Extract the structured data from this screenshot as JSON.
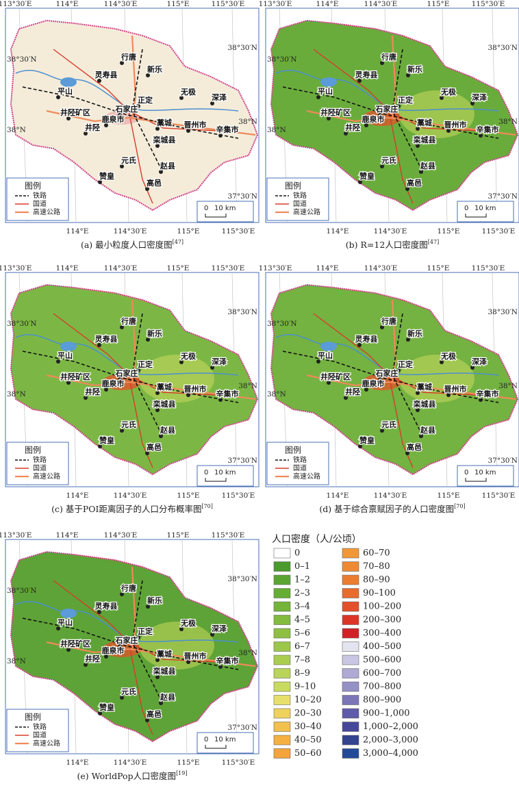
{
  "maps": [
    {
      "caption": "(a) 最小粒度人口密度图",
      "ref": "[47]",
      "fill": "#f4ecd9"
    },
    {
      "caption": "(b) R=12人口密度图",
      "ref": "[47]",
      "fill": "#6aac3c"
    },
    {
      "caption": "(c) 基于POI距离因子的人口分布概率图",
      "ref": "[70]",
      "fill": "#7cb745"
    },
    {
      "caption": "(d) 基于综合禀赋因子的人口密度图",
      "ref": "[70]",
      "fill": "#74b241"
    },
    {
      "caption": "(e) WorldPop人口密度图",
      "ref": "[19]",
      "fill": "#5ea337"
    }
  ],
  "graticule": {
    "top": [
      "113°30′E",
      "114°E",
      "114°30′E",
      "115°E",
      "115°30′E"
    ],
    "bottom": [
      "114°E",
      "114°30′E",
      "115°E",
      "115°30′E"
    ],
    "left": [
      "38°30′N",
      "38°N"
    ],
    "right": [
      "38°30′N",
      "38°N",
      "37°30′N"
    ]
  },
  "places": [
    "行唐",
    "灵寿县",
    "新乐",
    "平山",
    "正定",
    "石家庄",
    "无极",
    "深泽",
    "井陉矿区",
    "鹿泉市",
    "井陉",
    "藁城",
    "晋州市",
    "辛集市",
    "栾城县",
    "元氏",
    "赵县",
    "赞皇",
    "高邑"
  ],
  "map_legend": {
    "title": "图例",
    "items": [
      "铁路",
      "国道",
      "高速公路"
    ]
  },
  "scale_bar": {
    "zero": "0",
    "length": "10 km"
  },
  "density_legend": {
    "title": "人口密度（人/公顷）",
    "items": [
      {
        "label": "0",
        "color": "#ffffff"
      },
      {
        "label": "0–1",
        "color": "#4a9a2c"
      },
      {
        "label": "1–2",
        "color": "#5aa532"
      },
      {
        "label": "2–3",
        "color": "#66ad34"
      },
      {
        "label": "3–4",
        "color": "#74b43a"
      },
      {
        "label": "4–5",
        "color": "#82bb3e"
      },
      {
        "label": "5–6",
        "color": "#8fc043"
      },
      {
        "label": "6–7",
        "color": "#9cc74a"
      },
      {
        "label": "7–8",
        "color": "#aacd50"
      },
      {
        "label": "8–9",
        "color": "#bad459"
      },
      {
        "label": "9–10",
        "color": "#c9db5e"
      },
      {
        "label": "10–20",
        "color": "#e6e06a"
      },
      {
        "label": "20–30",
        "color": "#efd25c"
      },
      {
        "label": "30–40",
        "color": "#f2c04c"
      },
      {
        "label": "40–50",
        "color": "#f5b040"
      },
      {
        "label": "50–60",
        "color": "#f4a43a"
      },
      {
        "label": "60–70",
        "color": "#f29737"
      },
      {
        "label": "70–80",
        "color": "#ef8a34"
      },
      {
        "label": "80–90",
        "color": "#ec7c30"
      },
      {
        "label": "90–100",
        "color": "#e96c2d"
      },
      {
        "label": "100–200",
        "color": "#e4502a"
      },
      {
        "label": "200–300",
        "color": "#dc3528"
      },
      {
        "label": "300–400",
        "color": "#d22027"
      },
      {
        "label": "400–500",
        "color": "#e4e3f0"
      },
      {
        "label": "500–600",
        "color": "#c8c6e2"
      },
      {
        "label": "600–700",
        "color": "#aeaad4"
      },
      {
        "label": "700–800",
        "color": "#9590c6"
      },
      {
        "label": "800–900",
        "color": "#7b76b8"
      },
      {
        "label": "900–1,000",
        "color": "#5f5aa9"
      },
      {
        "label": "1,000–2,000",
        "color": "#46479b"
      },
      {
        "label": "2,000–3,000",
        "color": "#34438f"
      },
      {
        "label": "3,000–4,000",
        "color": "#234a99"
      }
    ]
  }
}
